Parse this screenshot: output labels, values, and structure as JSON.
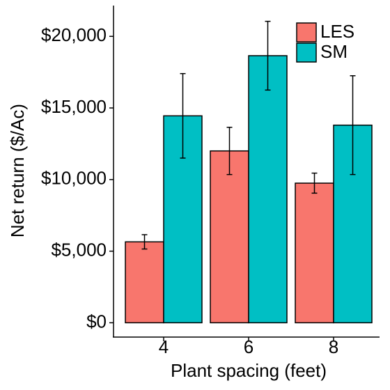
{
  "chart_data": {
    "type": "bar",
    "x_label": "Plant spacing (feet)",
    "y_label": "Net return ($/Ac)",
    "categories": [
      "4",
      "6",
      "8"
    ],
    "series": [
      {
        "name": "LES",
        "color": "#F8766D",
        "values": [
          5650,
          12000,
          9750
        ],
        "errors": [
          500,
          1650,
          700
        ]
      },
      {
        "name": "SM",
        "color": "#00BFC4",
        "values": [
          14450,
          18650,
          13800
        ],
        "errors": [
          2950,
          2400,
          3450
        ]
      }
    ],
    "ylim": [
      -1000,
      22150
    ],
    "yticks": [
      {
        "value": 0,
        "label": "$0"
      },
      {
        "value": 5000,
        "label": "$5,000"
      },
      {
        "value": 10000,
        "label": "$10,000"
      },
      {
        "value": 15000,
        "label": "$15,000"
      },
      {
        "value": 20000,
        "label": "$20,000"
      }
    ],
    "grid": false,
    "legend_position": "top-right"
  }
}
